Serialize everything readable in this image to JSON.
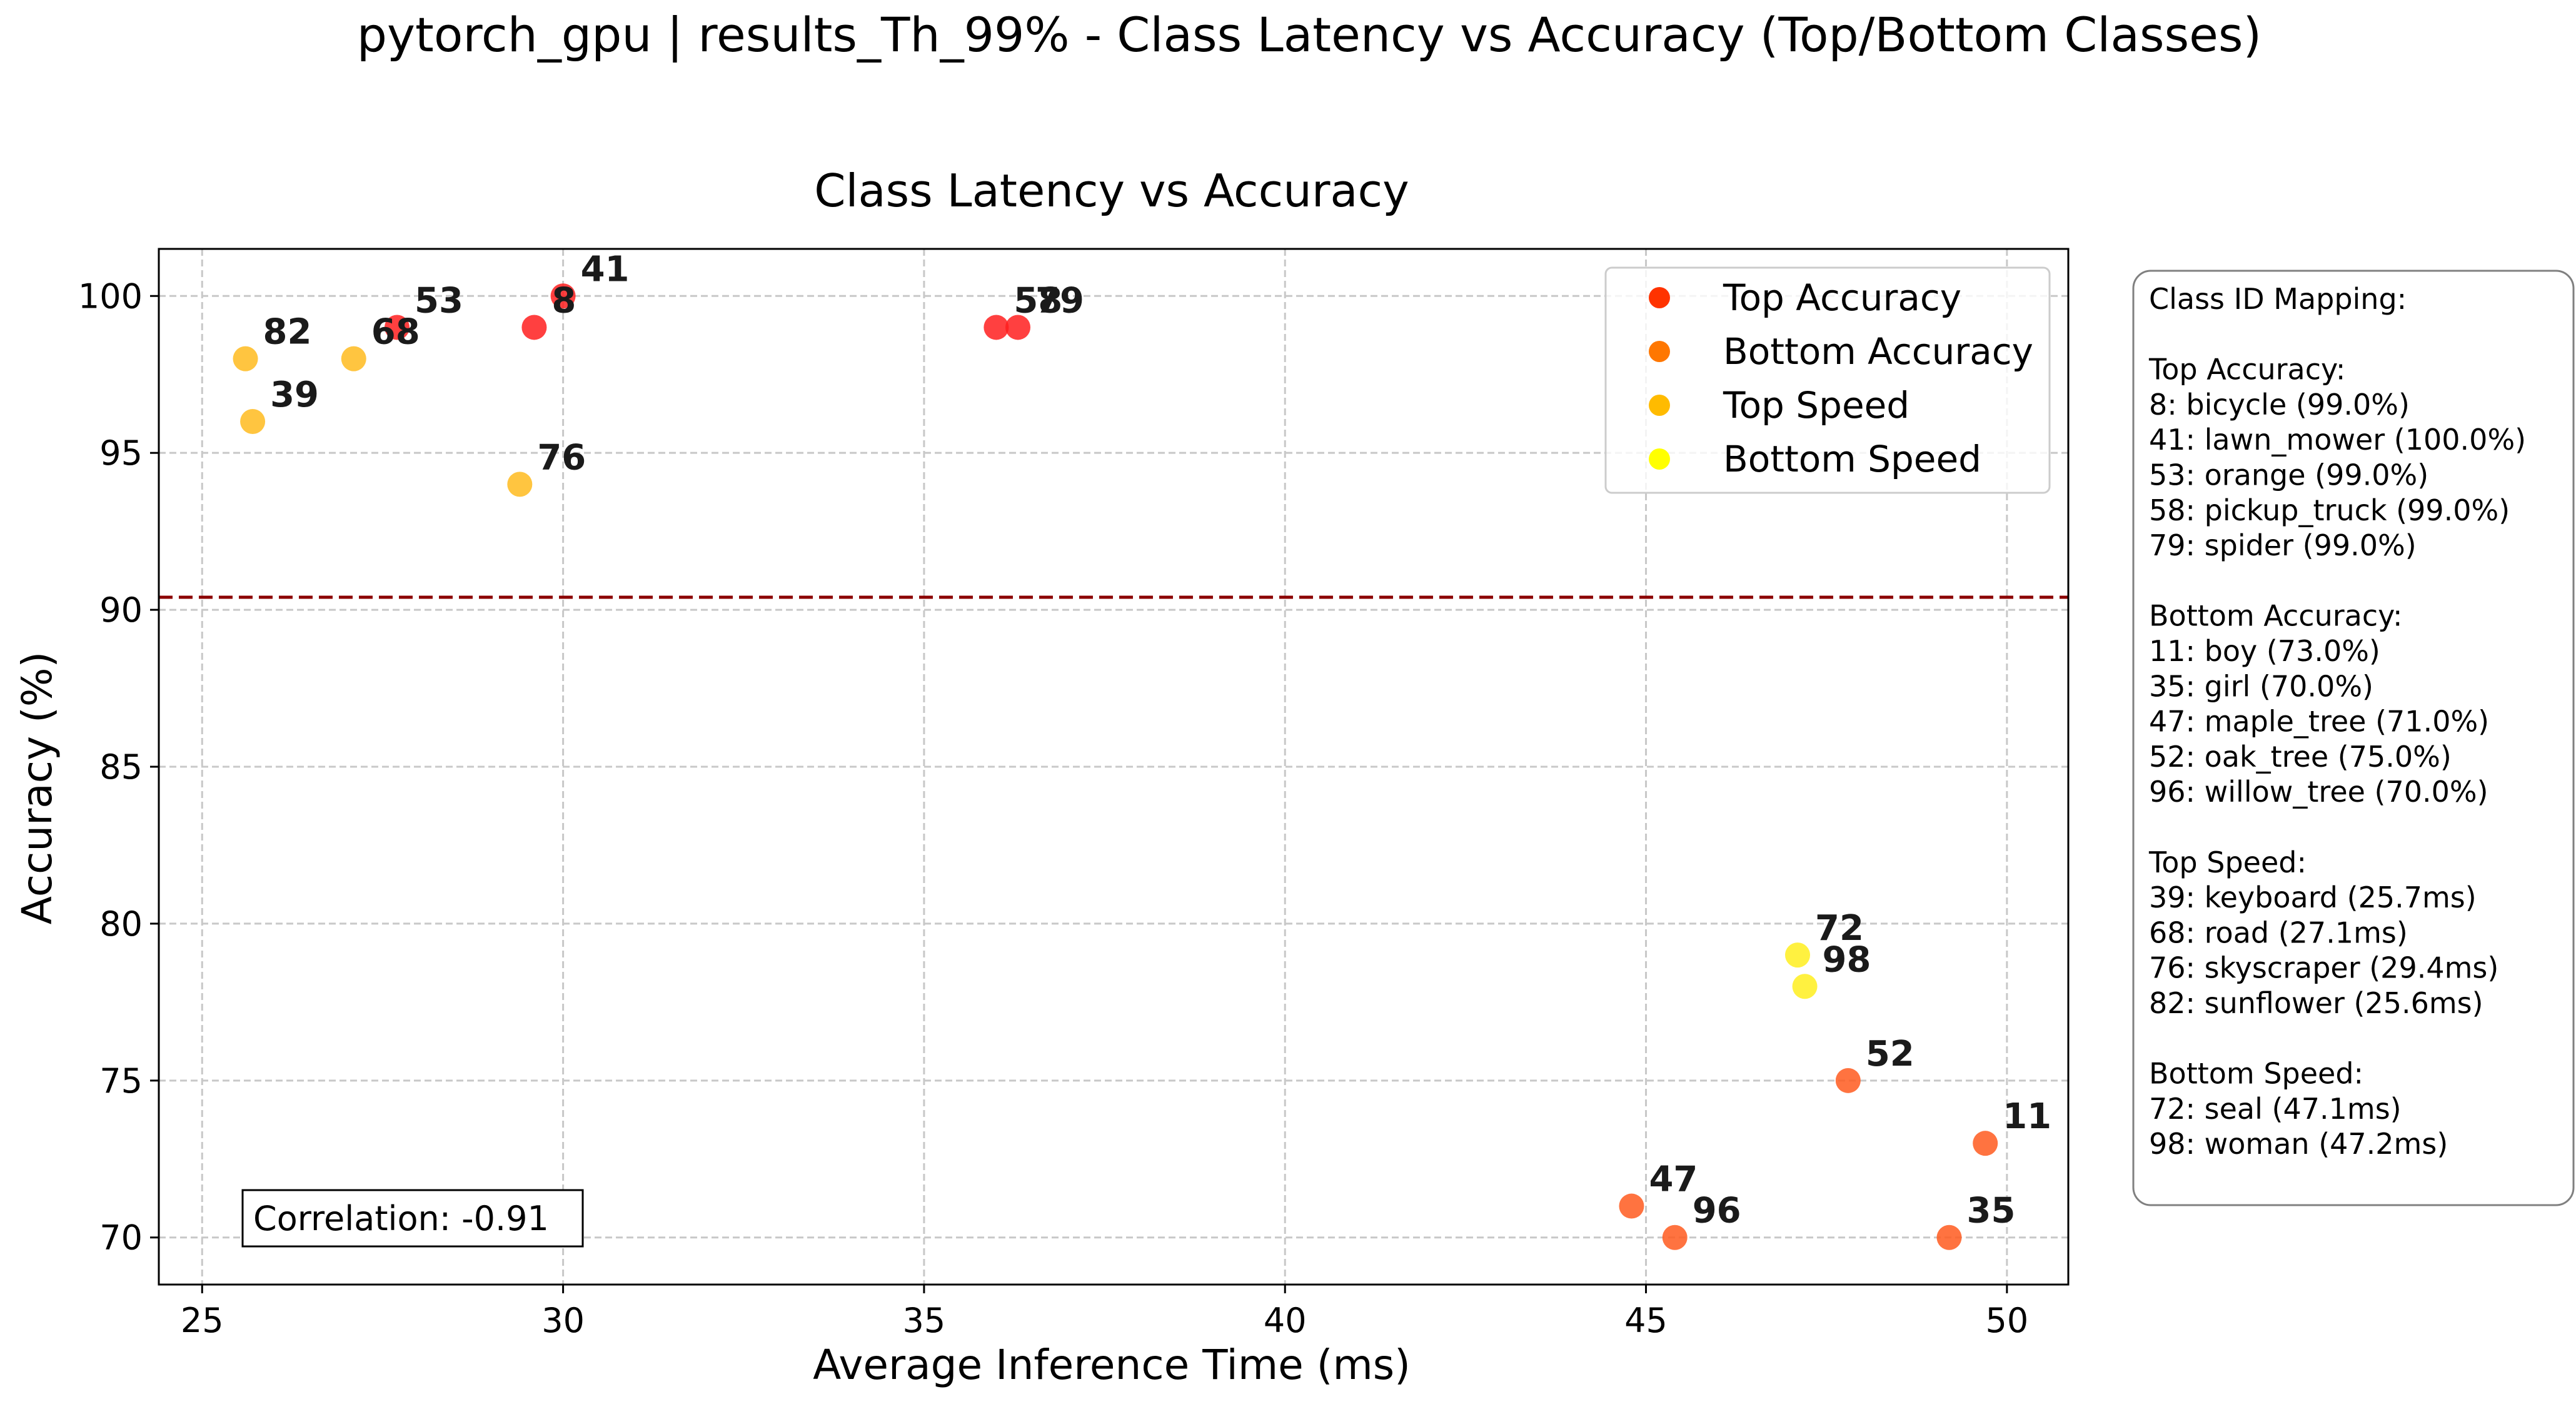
{
  "figure": {
    "suptitle": "pytorch_gpu | results_Th_99% - Class Latency vs Accuracy (Top/Bottom Classes)"
  },
  "chart_data": {
    "type": "scatter",
    "title": "Class Latency vs Accuracy",
    "xlabel": "Average Inference Time (ms)",
    "ylabel": "Accuracy (%)",
    "xlim": [
      24.4,
      50.85
    ],
    "ylim": [
      68.5,
      101.5
    ],
    "xticks": [
      25,
      30,
      35,
      40,
      45,
      50
    ],
    "yticks": [
      70,
      75,
      80,
      85,
      90,
      95,
      100
    ],
    "grid": true,
    "legend_position": "top-right",
    "reference_line": {
      "y": 90.4,
      "color": "#8b0000",
      "style": "dashed"
    },
    "series": [
      {
        "name": "Top Accuracy",
        "color": "#ff1f1f",
        "legend_color": "#ff3300",
        "points": [
          {
            "label": "8",
            "x": 29.6,
            "y": 99.0
          },
          {
            "label": "41",
            "x": 30.0,
            "y": 100.0
          },
          {
            "label": "53",
            "x": 27.7,
            "y": 99.0
          },
          {
            "label": "58",
            "x": 36.0,
            "y": 99.0
          },
          {
            "label": "79",
            "x": 36.3,
            "y": 99.0
          }
        ]
      },
      {
        "name": "Bottom Accuracy",
        "color": "#ff5a1f",
        "legend_color": "#ff7700",
        "points": [
          {
            "label": "11",
            "x": 49.7,
            "y": 73.0
          },
          {
            "label": "35",
            "x": 49.2,
            "y": 70.0
          },
          {
            "label": "47",
            "x": 44.8,
            "y": 71.0
          },
          {
            "label": "52",
            "x": 47.8,
            "y": 75.0
          },
          {
            "label": "96",
            "x": 45.4,
            "y": 70.0
          }
        ]
      },
      {
        "name": "Top Speed",
        "color": "#ffbb1f",
        "legend_color": "#ffbb00",
        "points": [
          {
            "label": "39",
            "x": 25.7,
            "y": 96.0
          },
          {
            "label": "68",
            "x": 27.1,
            "y": 98.0
          },
          {
            "label": "76",
            "x": 29.4,
            "y": 94.0
          },
          {
            "label": "82",
            "x": 25.6,
            "y": 98.0
          }
        ]
      },
      {
        "name": "Bottom Speed",
        "color": "#ffee1f",
        "legend_color": "#ffff00",
        "points": [
          {
            "label": "72",
            "x": 47.1,
            "y": 79.0
          },
          {
            "label": "98",
            "x": 47.2,
            "y": 78.0
          }
        ]
      }
    ],
    "annotation": "Correlation: -0.91"
  },
  "mapping_box": {
    "lines": [
      "Class ID Mapping:",
      "",
      "Top Accuracy:",
      "8: bicycle (99.0%)",
      "41: lawn_mower (100.0%)",
      "53: orange (99.0%)",
      "58: pickup_truck (99.0%)",
      "79: spider (99.0%)",
      "",
      "Bottom Accuracy:",
      "11: boy (73.0%)",
      "35: girl (70.0%)",
      "47: maple_tree (71.0%)",
      "52: oak_tree (75.0%)",
      "96: willow_tree (70.0%)",
      "",
      "Top Speed:",
      "39: keyboard (25.7ms)",
      "68: road (27.1ms)",
      "76: skyscraper (29.4ms)",
      "82: sunflower (25.6ms)",
      "",
      "Bottom Speed:",
      "72: seal (47.1ms)",
      "98: woman (47.2ms)"
    ]
  }
}
